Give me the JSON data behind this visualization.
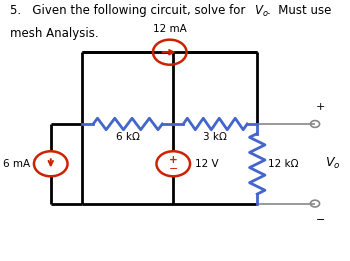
{
  "bg_color": "#ffffff",
  "text_color": "#000000",
  "circuit_color": "#000000",
  "resistor_color": "#4466cc",
  "source_color": "#cc2200",
  "terminal_color": "#888888",
  "label_12mA": "12 mA",
  "label_6mA": "6 mA",
  "label_6k": "6 kΩ",
  "label_3k": "3 kΩ",
  "label_12k": "12 kΩ",
  "label_12V": "12 V",
  "label_plus": "+",
  "label_minus": "−",
  "xl": 0.235,
  "xm": 0.495,
  "xr": 0.735,
  "yt": 0.8,
  "ym": 0.525,
  "yb": 0.22,
  "xterm": 0.9,
  "cs_r": 0.048,
  "vs_r": 0.048
}
